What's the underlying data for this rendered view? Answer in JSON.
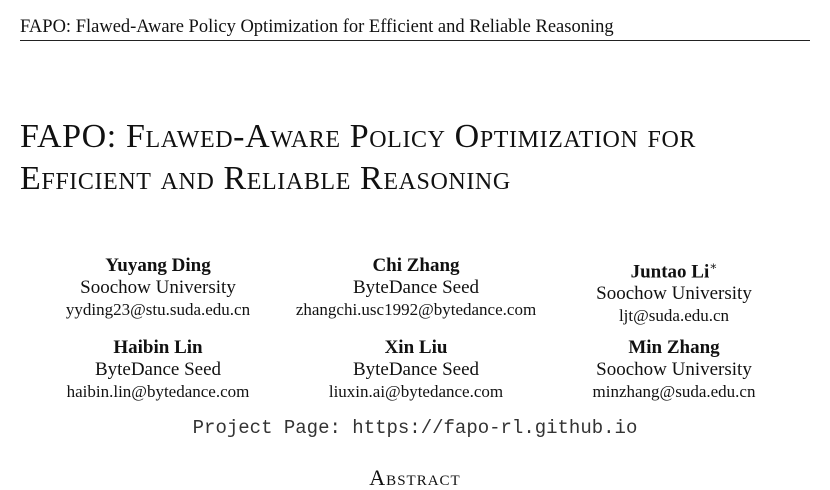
{
  "running_head": "FAPO: Flawed-Aware Policy Optimization for Efficient and Reliable Reasoning",
  "title": {
    "line1": "FAPO: Flawed-Aware Policy Optimization for",
    "line2": "Efficient and Reliable Reasoning"
  },
  "authors": [
    {
      "name": "Yuyang Ding",
      "affiliation": "Soochow University",
      "email": "yyding23@stu.suda.edu.cn",
      "mark": ""
    },
    {
      "name": "Chi Zhang",
      "affiliation": "ByteDance Seed",
      "email": "zhangchi.usc1992@bytedance.com",
      "mark": ""
    },
    {
      "name": "Juntao Li",
      "affiliation": "Soochow University",
      "email": "ljt@suda.edu.cn",
      "mark": "∗"
    },
    {
      "name": "Haibin Lin",
      "affiliation": "ByteDance Seed",
      "email": "haibin.lin@bytedance.com",
      "mark": ""
    },
    {
      "name": "Xin Liu",
      "affiliation": "ByteDance Seed",
      "email": "liuxin.ai@bytedance.com",
      "mark": ""
    },
    {
      "name": "Min Zhang",
      "affiliation": "Soochow University",
      "email": "minzhang@suda.edu.cn",
      "mark": ""
    }
  ],
  "project_page": {
    "label": "Project Page:",
    "url": "https://fapo-rl.github.io"
  },
  "abstract_heading": "Abstract"
}
